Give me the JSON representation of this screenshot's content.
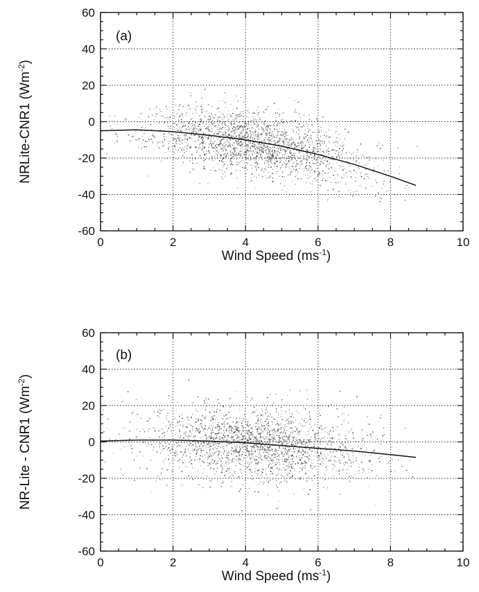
{
  "chart_data": [
    {
      "type": "scatter",
      "panel_label": "(a)",
      "xlabel": "Wind Speed (ms",
      "xlabel_sup": "-1",
      "xlabel_tail": ")",
      "ylabel": "NRLite-CNR1 (Wm",
      "ylabel_sup": "-2",
      "ylabel_tail": ")",
      "xlim": [
        0,
        10
      ],
      "ylim": [
        -60,
        60
      ],
      "xticks": [
        "0",
        "2",
        "4",
        "6",
        "8",
        "10"
      ],
      "yticks": [
        "-60",
        "-40",
        "-20",
        "0",
        "20",
        "40",
        "60"
      ],
      "grid": true,
      "cloud": {
        "x_mean": 4.2,
        "x_sd": 1.45,
        "x_min": 0,
        "x_max": 8.8,
        "y_sd": 9,
        "n_points": 2200
      },
      "fit_line": {
        "x": [
          0,
          1,
          2,
          3,
          4,
          5,
          6,
          7,
          8,
          8.7
        ],
        "y": [
          -5,
          -4.5,
          -5.5,
          -7.5,
          -10,
          -13.5,
          -18,
          -23.5,
          -30,
          -35
        ]
      }
    },
    {
      "type": "scatter",
      "panel_label": "(b)",
      "xlabel": "Wind Speed (ms",
      "xlabel_sup": "-1",
      "xlabel_tail": ")",
      "ylabel": "NR-Lite - CNR1 (Wm",
      "ylabel_sup": "-2",
      "ylabel_tail": ")",
      "xlim": [
        0,
        10
      ],
      "ylim": [
        -60,
        60
      ],
      "xticks": [
        "0",
        "2",
        "4",
        "6",
        "8",
        "10"
      ],
      "yticks": [
        "-60",
        "-40",
        "-20",
        "0",
        "20",
        "40",
        "60"
      ],
      "grid": true,
      "cloud": {
        "x_mean": 4.3,
        "x_sd": 1.5,
        "x_min": 0,
        "x_max": 8.8,
        "y_sd": 10,
        "n_points": 2200
      },
      "fit_line": {
        "x": [
          0,
          1,
          2,
          3,
          4,
          5,
          6,
          7,
          8,
          8.7
        ],
        "y": [
          0.5,
          1,
          1,
          0.5,
          -0.5,
          -2,
          -3.5,
          -5,
          -7,
          -8.5
        ]
      }
    }
  ]
}
